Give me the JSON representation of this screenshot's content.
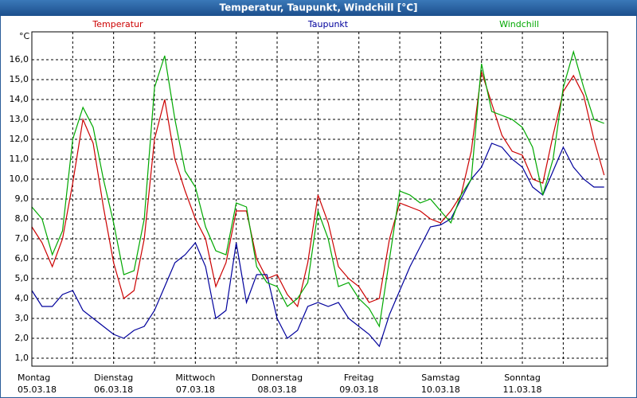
{
  "chart_data": {
    "type": "line",
    "title": "Temperatur, Taupunkt, Windchill [°C]",
    "y_unit": "°C",
    "x": [
      0,
      3,
      6,
      9,
      12,
      15,
      18,
      21,
      24,
      27,
      30,
      33,
      36,
      39,
      42,
      45,
      48,
      51,
      54,
      57,
      60,
      63,
      66,
      69,
      72,
      75,
      78,
      81,
      84,
      87,
      90,
      93,
      96,
      99,
      102,
      105,
      108,
      111,
      114,
      117,
      120,
      123,
      126,
      129,
      132,
      135,
      138,
      141,
      144,
      147,
      150,
      153,
      156,
      159,
      162,
      165,
      168
    ],
    "series": [
      {
        "name": "Temperatur",
        "color": "#cc0000",
        "values": [
          7.6,
          6.8,
          5.6,
          7.0,
          9.8,
          13.0,
          11.8,
          8.6,
          5.8,
          4.0,
          4.4,
          7.0,
          12.0,
          14.0,
          11.0,
          9.4,
          8.0,
          7.0,
          4.6,
          5.8,
          8.4,
          8.4,
          6.0,
          5.0,
          5.2,
          4.2,
          3.6,
          5.8,
          9.2,
          7.8,
          5.6,
          5.0,
          4.6,
          3.8,
          4.0,
          7.0,
          8.8,
          8.6,
          8.4,
          8.0,
          7.8,
          8.4,
          9.2,
          11.4,
          15.4,
          13.8,
          12.2,
          11.4,
          11.2,
          10.0,
          9.8,
          12.2,
          14.4,
          15.2,
          14.2,
          12.0,
          10.2
        ]
      },
      {
        "name": "Taupunkt",
        "color": "#00009c",
        "values": [
          4.4,
          3.6,
          3.6,
          4.2,
          4.4,
          3.4,
          3.0,
          2.6,
          2.2,
          2.0,
          2.4,
          2.6,
          3.4,
          4.6,
          5.8,
          6.2,
          6.8,
          5.6,
          3.0,
          3.4,
          6.8,
          3.8,
          5.2,
          5.2,
          3.0,
          2.0,
          2.4,
          3.6,
          3.8,
          3.6,
          3.8,
          3.0,
          2.6,
          2.2,
          1.6,
          3.2,
          4.4,
          5.6,
          6.6,
          7.6,
          7.7,
          8.0,
          9.0,
          10.0,
          10.6,
          11.8,
          11.6,
          11.0,
          10.6,
          9.6,
          9.2,
          10.4,
          11.6,
          10.6,
          10.0,
          9.6,
          9.6
        ]
      },
      {
        "name": "Windchill",
        "color": "#00a800",
        "values": [
          8.6,
          8.0,
          6.2,
          7.4,
          12.0,
          13.6,
          12.6,
          10.0,
          7.8,
          5.2,
          5.4,
          8.0,
          14.6,
          16.2,
          13.0,
          10.4,
          9.6,
          7.6,
          6.4,
          6.2,
          8.8,
          8.6,
          5.6,
          4.8,
          4.6,
          3.6,
          4.0,
          4.8,
          8.4,
          7.0,
          4.6,
          4.8,
          4.0,
          3.5,
          2.6,
          6.0,
          9.4,
          9.2,
          8.8,
          9.0,
          8.4,
          7.8,
          9.2,
          10.0,
          15.8,
          13.4,
          13.2,
          13.0,
          12.6,
          11.6,
          9.2,
          11.0,
          14.6,
          16.4,
          14.6,
          13.0,
          12.8
        ]
      }
    ],
    "xlim": [
      0,
      169
    ],
    "xticks": [
      {
        "value": 0,
        "label": "Montag",
        "date": "05.03.18"
      },
      {
        "value": 12,
        "label": null
      },
      {
        "value": 24,
        "label": "Dienstag",
        "date": "06.03.18"
      },
      {
        "value": 36,
        "label": null
      },
      {
        "value": 48,
        "label": "Mittwoch",
        "date": "07.03.18"
      },
      {
        "value": 60,
        "label": null
      },
      {
        "value": 72,
        "label": "Donnerstag",
        "date": "08.03.18"
      },
      {
        "value": 84,
        "label": null
      },
      {
        "value": 96,
        "label": "Freitag",
        "date": "09.03.18"
      },
      {
        "value": 108,
        "label": null
      },
      {
        "value": 120,
        "label": "Samstag",
        "date": "10.03.18"
      },
      {
        "value": 132,
        "label": null
      },
      {
        "value": 144,
        "label": "Sonntag",
        "date": "11.03.18"
      },
      {
        "value": 156,
        "label": null
      }
    ],
    "ylim": [
      0.6,
      17.4
    ],
    "yticks": [
      {
        "value": 1,
        "label": "1,0"
      },
      {
        "value": 2,
        "label": "2,0"
      },
      {
        "value": 3,
        "label": "3,0"
      },
      {
        "value": 4,
        "label": "4,0"
      },
      {
        "value": 5,
        "label": "5,0"
      },
      {
        "value": 6,
        "label": "6,0"
      },
      {
        "value": 7,
        "label": "7,0"
      },
      {
        "value": 8,
        "label": "8,0"
      },
      {
        "value": 9,
        "label": "9,0"
      },
      {
        "value": 10,
        "label": "10,0"
      },
      {
        "value": 11,
        "label": "11,0"
      },
      {
        "value": 12,
        "label": "12,0"
      },
      {
        "value": 13,
        "label": "13,0"
      },
      {
        "value": 14,
        "label": "14,0"
      },
      {
        "value": 15,
        "label": "15,0"
      },
      {
        "value": 16,
        "label": "16,0"
      }
    ],
    "grid": true
  }
}
